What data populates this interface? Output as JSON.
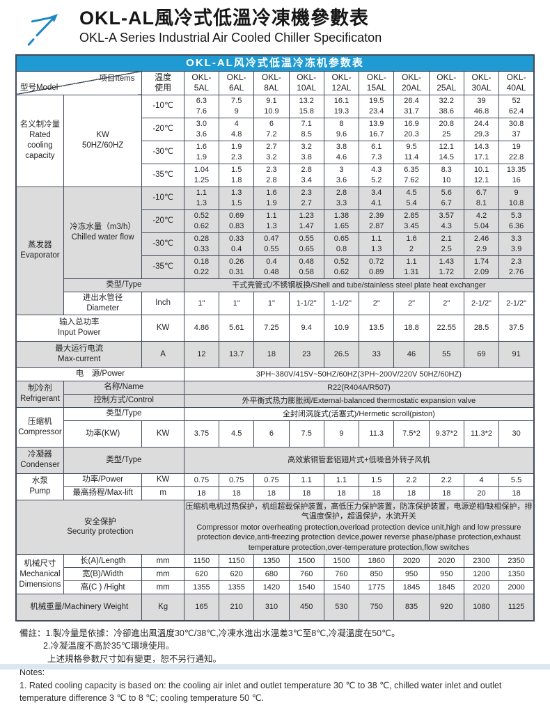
{
  "header": {
    "title_zh": "OKL-AL風冷式低溫冷凍機參數表",
    "title_en": "OKL-A Series Industrial Air Cooled Chiller Specificaton"
  },
  "colors": {
    "banner_blue": "#1f9ad3",
    "section_gray": "#dcdcdc",
    "grid_line": "#3f4a5a",
    "logo_blue": "#1d86c8",
    "footer_strip": "#dbe7f0"
  },
  "table": {
    "banner_title": "OKL-AL风冷式低温冷冻机参数表",
    "rows": [
      {
        "kind": "banner",
        "cells": [
          {
            "t": "OKL-AL风冷式低温冷冻机参数表",
            "c": 13,
            "cls": "banner",
            "name": "table-banner-title"
          }
        ]
      },
      {
        "kind": "header",
        "cells": [
          {
            "t": "型号Model|项目Items",
            "c": 2,
            "cls": "corner hdr",
            "name": "corner-header"
          },
          {
            "t": "温度|使用",
            "cls": "hdr",
            "name": "temp-usage-header"
          },
          {
            "t": "OKL-|5AL",
            "cls": "hdr",
            "name": "model-header"
          },
          {
            "t": "OKL-|6AL",
            "cls": "hdr",
            "name": "model-header"
          },
          {
            "t": "OKL-|8AL",
            "cls": "hdr",
            "name": "model-header"
          },
          {
            "t": "OKL-|10AL",
            "cls": "hdr",
            "name": "model-header"
          },
          {
            "t": "OKL-|12AL",
            "cls": "hdr",
            "name": "model-header"
          },
          {
            "t": "OKL-|15AL",
            "cls": "hdr",
            "name": "model-header"
          },
          {
            "t": "OKL-|20AL",
            "cls": "hdr",
            "name": "model-header"
          },
          {
            "t": "OKL-|25AL",
            "cls": "hdr",
            "name": "model-header"
          },
          {
            "t": "OKL-|30AL",
            "cls": "hdr",
            "name": "model-header"
          },
          {
            "t": "OKL-|40AL",
            "cls": "hdr",
            "name": "model-header"
          }
        ]
      },
      {
        "kind": "pair",
        "shade": "w",
        "cells": [
          {
            "t": "名义制冷量|Rated|cooling|capacity",
            "r": 4,
            "cls": "lbl",
            "name": "section-label"
          },
          {
            "t": "KW|50HZ/60HZ",
            "r": 4,
            "cls": "lbl",
            "name": "item-label"
          },
          {
            "t": "-10℃",
            "cls": "lbl",
            "name": "temp-label"
          },
          "6.3|7.6",
          "7.5|9",
          "9.1|10.9",
          "13.2|15.8",
          "16.1|19.3",
          "19.5|23.4",
          "26.4|31.7",
          "32.2|38.6",
          "39|46.8",
          "52|62.4"
        ]
      },
      {
        "kind": "pair",
        "shade": "w",
        "cells": [
          {
            "t": "-20℃",
            "cls": "lbl",
            "name": "temp-label"
          },
          "3.0|3.6",
          "4|4.8",
          "6|7.2",
          "7.1|8.5",
          "8|9.6",
          "13.9|16.7",
          "16.9|20.3",
          "20.8|25",
          "24.4|29.3",
          "30.8|37"
        ]
      },
      {
        "kind": "pair",
        "shade": "w",
        "cells": [
          {
            "t": "-30℃",
            "cls": "lbl",
            "name": "temp-label"
          },
          "1.6|1.9",
          "1.9|2.3",
          "2.7|3.2",
          "3.2|3.8",
          "3.8|4.6",
          "6.1|7.3",
          "9.5|11.4",
          "12.1|14.5",
          "14.3|17.1",
          "19|22.8"
        ]
      },
      {
        "kind": "pair",
        "shade": "w",
        "cells": [
          {
            "t": "-35℃",
            "cls": "lbl",
            "name": "temp-label"
          },
          "1.04|1.25",
          "1.5|1.8",
          "2.3|2.8",
          "2.8|3.4",
          "3|3.6",
          "4.3|5.2",
          "6.35|7.62",
          "8.3|10",
          "10.1|12.1",
          "13.35|16"
        ]
      },
      {
        "kind": "pair",
        "shade": "g",
        "cells": [
          {
            "t": "蒸发器|Evaporator",
            "r": 6,
            "cls": "lbl",
            "name": "section-label"
          },
          {
            "t": "冷冻水量（m3/h）|Chilled water flow",
            "r": 4,
            "cls": "lbl",
            "name": "item-label"
          },
          {
            "t": "-10℃",
            "cls": "lbl",
            "name": "temp-label"
          },
          "1.1|1.3",
          "1.3|1.5",
          "1.6|1.9",
          "2.3|2.7",
          "2.8|3.3",
          "3.4|4.1",
          "4.5|5.4",
          "5.6|6.7",
          "6.7|8.1",
          "9|10.8"
        ]
      },
      {
        "kind": "pair",
        "shade": "g",
        "cells": [
          {
            "t": "-20℃",
            "cls": "lbl",
            "name": "temp-label"
          },
          "0.52|0.62",
          "0.69|0.83",
          "1.1|1.3",
          "1.23|1.47",
          "1.38|1.65",
          "2.39|2.87",
          "2.85|3.45",
          "3.57|4.3",
          "4.2|5.04",
          "5.3|6.36"
        ]
      },
      {
        "kind": "pair",
        "shade": "g",
        "cells": [
          {
            "t": "-30℃",
            "cls": "lbl",
            "name": "temp-label"
          },
          "0.28|0.33",
          "0.33|0.4",
          "0.47|0.55",
          "0.55|0.65",
          "0.65|0.8",
          "1.1|1.3",
          "1.6|2",
          "2.1|2.5",
          "2.46|2.9",
          "3.3|3.9"
        ]
      },
      {
        "kind": "pair",
        "shade": "g",
        "cells": [
          {
            "t": "-35℃",
            "cls": "lbl",
            "name": "temp-label"
          },
          "0.18|0.22",
          "0.26|0.31",
          "0.4|0.48",
          "0.48|0.58",
          "0.52|0.62",
          "0.72|0.89",
          "1.1|1.31",
          "1.43|1.72",
          "1.74|2.09",
          "2.3|2.76"
        ]
      },
      {
        "kind": "short",
        "shade": "g",
        "cells": [
          {
            "t": "类型/Type",
            "c": 2,
            "cls": "lbl",
            "name": "item-label"
          },
          {
            "t": "干式壳管式/不锈钢板换/Shell and tube/stainless steel plate heat exchanger",
            "c": 10,
            "name": "merged-value"
          }
        ]
      },
      {
        "kind": "medium",
        "shade": "w",
        "cells": [
          {
            "t": "进出水管径|Diameter",
            "cls": "lbl",
            "name": "item-label"
          },
          {
            "t": "Inch",
            "cls": "lbl",
            "name": "unit-label"
          },
          "1\"",
          "1\"",
          "1\"",
          "1-1/2\"",
          "1-1/2\"",
          "2\"",
          "2\"",
          "2\"",
          "2-1/2\"",
          "2-1/2\""
        ]
      },
      {
        "kind": "large",
        "shade": "w",
        "cells": [
          {
            "t": "输入总功率|Input Power",
            "c": 2,
            "cls": "lbl",
            "name": "item-label"
          },
          {
            "t": "KW",
            "cls": "lbl",
            "name": "unit-label"
          },
          "4.86",
          "5.61",
          "7.25",
          "9.4",
          "10.9",
          "13.5",
          "18.8",
          "22.55",
          "28.5",
          "37.5"
        ]
      },
      {
        "kind": "large",
        "shade": "g",
        "cells": [
          {
            "t": "最大运行电流|Max-current",
            "c": 2,
            "cls": "lbl",
            "name": "item-label"
          },
          {
            "t": "A",
            "cls": "lbl",
            "name": "unit-label"
          },
          "12",
          "13.7",
          "18",
          "23",
          "26.5",
          "33",
          "46",
          "55",
          "69",
          "91"
        ]
      },
      {
        "kind": "short",
        "shade": "w",
        "cells": [
          {
            "t": "电　源/Power",
            "c": 3,
            "cls": "lbl",
            "name": "item-label"
          },
          {
            "t": "3PH~380V/415V~50HZ/60HZ(3PH~200V/220V  50HZ/60HZ)",
            "c": 10,
            "name": "merged-value"
          }
        ]
      },
      {
        "kind": "short",
        "shade": "g",
        "cells": [
          {
            "t": "制冷剂|Refrigerant",
            "r": 2,
            "cls": "lbl",
            "name": "section-label"
          },
          {
            "t": "名称/Name",
            "c": 2,
            "cls": "lbl",
            "name": "item-label"
          },
          {
            "t": "R22(R404A/R507)",
            "c": 10,
            "name": "merged-value"
          }
        ]
      },
      {
        "kind": "short",
        "shade": "g",
        "cells": [
          {
            "t": "控制方式/Control",
            "c": 2,
            "cls": "lbl",
            "name": "item-label"
          },
          {
            "t": "外平衡式热力膨胀阀/External-balanced thermostatic expansion valve",
            "c": 10,
            "name": "merged-value"
          }
        ]
      },
      {
        "kind": "short",
        "shade": "w",
        "cells": [
          {
            "t": "压缩机|Compressor",
            "r": 2,
            "cls": "lbl",
            "name": "section-label"
          },
          {
            "t": "类型/Type",
            "c": 2,
            "cls": "lbl",
            "name": "item-label"
          },
          {
            "t": "全封闭涡旋式(活塞式)/Hermetic scroll(piston)",
            "c": 10,
            "name": "merged-value"
          }
        ]
      },
      {
        "kind": "large",
        "shade": "w",
        "cells": [
          {
            "t": "功率(KW)",
            "cls": "lbl",
            "name": "item-label"
          },
          {
            "t": "KW",
            "cls": "lbl",
            "name": "unit-label"
          },
          "3.75",
          "4.5",
          "6",
          "7.5",
          "9",
          "11.3",
          "7.5*2",
          "9.37*2",
          "11.3*2",
          "30"
        ]
      },
      {
        "kind": "large",
        "shade": "g",
        "cells": [
          {
            "t": "冷凝器|Condenser",
            "cls": "lbl",
            "name": "section-label"
          },
          {
            "t": "类型/Type",
            "c": 2,
            "cls": "lbl",
            "name": "item-label"
          },
          {
            "t": "高效紫铜管套铝翅片式+低噪音外转子风机",
            "c": 10,
            "name": "merged-value"
          }
        ]
      },
      {
        "kind": "short",
        "shade": "w",
        "cells": [
          {
            "t": "水泵|Pump",
            "r": 2,
            "cls": "lbl",
            "name": "section-label"
          },
          {
            "t": "功率/Power",
            "cls": "lbl",
            "name": "item-label"
          },
          {
            "t": "KW",
            "cls": "lbl",
            "name": "unit-label"
          },
          "0.75",
          "0.75",
          "0.75",
          "1.1",
          "1.1",
          "1.5",
          "2.2",
          "2.2",
          "4",
          "5.5"
        ]
      },
      {
        "kind": "short",
        "shade": "w",
        "cells": [
          {
            "t": "最高扬程/Max-lift",
            "cls": "lbl",
            "name": "item-label"
          },
          {
            "t": "m",
            "cls": "lbl",
            "name": "unit-label"
          },
          "18",
          "18",
          "18",
          "18",
          "18",
          "18",
          "18",
          "18",
          "20",
          "18"
        ]
      },
      {
        "kind": "security",
        "shade": "g",
        "cells": [
          {
            "t": "安全保护|Security protection",
            "c": 3,
            "cls": "lbl",
            "name": "section-label"
          },
          {
            "t": "压缩机电机过热保护，机组超载保护装置，高低压力保护装置，防冻保护装置，电源逆相/缺相保护，排气温度保护，超温保护，水流开关| Compressor motor overheating protection,overload protection device unit,high and low pressure protection device,anti-freezing protection device,power reverse phase/phase protection,exhaust temperature protection,over-temperature protection,flow switches",
            "c": 10,
            "cls": "left",
            "name": "security-text"
          }
        ]
      },
      {
        "kind": "short",
        "shade": "w",
        "cells": [
          {
            "t": "机械尺寸|Mechanical|Dimensions",
            "r": 3,
            "cls": "lbl",
            "name": "section-label"
          },
          {
            "t": "长(A)/Length",
            "cls": "lbl",
            "name": "item-label"
          },
          {
            "t": "mm",
            "cls": "lbl",
            "name": "unit-label"
          },
          "1150",
          "1150",
          "1350",
          "1500",
          "1500",
          "1860",
          "2020",
          "2020",
          "2300",
          "2350"
        ]
      },
      {
        "kind": "short",
        "shade": "w",
        "cells": [
          {
            "t": "宽(B)/Width",
            "cls": "lbl",
            "name": "item-label"
          },
          {
            "t": "mm",
            "cls": "lbl",
            "name": "unit-label"
          },
          "620",
          "620",
          "680",
          "760",
          "760",
          "850",
          "950",
          "950",
          "1200",
          "1350"
        ]
      },
      {
        "kind": "short",
        "shade": "w",
        "cells": [
          {
            "t": "高(C ) /Hight",
            "cls": "lbl",
            "name": "item-label"
          },
          {
            "t": "mm",
            "cls": "lbl",
            "name": "unit-label"
          },
          "1355",
          "1355",
          "1420",
          "1540",
          "1540",
          "1775",
          "1845",
          "1845",
          "2020",
          "2000"
        ]
      },
      {
        "kind": "large",
        "shade": "g",
        "cells": [
          {
            "t": "机械重量/Machinery Weight",
            "c": 2,
            "cls": "lbl",
            "name": "item-label"
          },
          {
            "t": "Kg",
            "cls": "lbl",
            "name": "unit-label"
          },
          "165",
          "210",
          "310",
          "450",
          "530",
          "750",
          "835",
          "920",
          "1080",
          "1125"
        ]
      }
    ]
  },
  "notes": {
    "lines": [
      "備註：1.製冷量是依據：冷卻進出風溫度30℃/38℃,冷凍水進出水溫差3℃至8℃,冷凝溫度在50℃。",
      "2.冷凝溫度不高於35℃環境使用。",
      "上述規格參數尺寸如有變更，恕不另行通知。",
      "Notes:",
      "1. Rated cooling capacity is based on: the cooling air inlet and outlet temperature 30 ℃ to 38 ℃, chilled water inlet and outlet temperature difference 3 ℃ to 8 ℃; cooling temperature 50 ℃."
    ]
  }
}
